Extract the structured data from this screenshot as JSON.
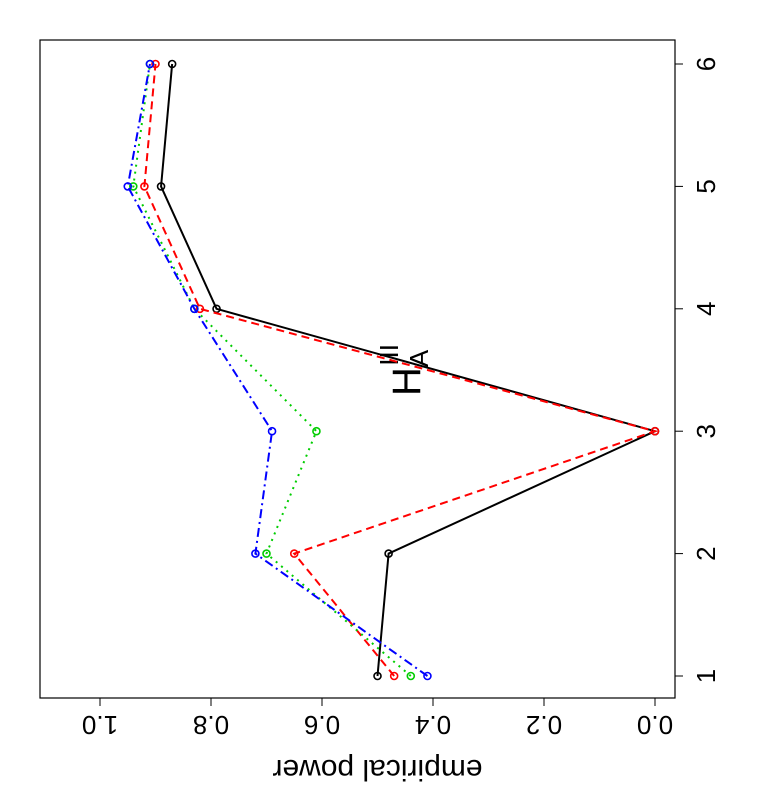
{
  "chart_data": {
    "type": "line",
    "title": "H",
    "title_sub": "A",
    "title_sup": "III",
    "ylabel": "empirical power",
    "x": [
      1,
      2,
      3,
      4,
      5,
      6
    ],
    "xlim": [
      1,
      6
    ],
    "xticks": [
      1,
      2,
      3,
      4,
      5,
      6
    ],
    "ylim": [
      0,
      1
    ],
    "yticks": [
      {
        "value": 0,
        "label": "0.0"
      },
      {
        "value": 0.2,
        "label": "0.2"
      },
      {
        "value": 0.4,
        "label": "0.4"
      },
      {
        "value": 0.6,
        "label": "0.6"
      },
      {
        "value": 0.8,
        "label": "0.8"
      },
      {
        "value": 1,
        "label": "1.0"
      }
    ],
    "rotation": -90,
    "series": [
      {
        "color": "#000000",
        "dash": "none",
        "values": [
          0.5,
          0.48,
          0.0,
          0.79,
          0.89,
          0.87
        ]
      },
      {
        "color": "#ff0000",
        "dash": "8 5",
        "values": [
          0.47,
          0.65,
          0.0,
          0.82,
          0.92,
          0.9
        ]
      },
      {
        "color": "#00cd00",
        "dash": "2 5",
        "values": [
          0.44,
          0.7,
          0.61,
          0.83,
          0.94,
          0.91
        ]
      },
      {
        "color": "#0000ff",
        "dash": "9 4 2 4",
        "values": [
          0.41,
          0.72,
          0.69,
          0.83,
          0.95,
          0.91
        ]
      }
    ]
  }
}
